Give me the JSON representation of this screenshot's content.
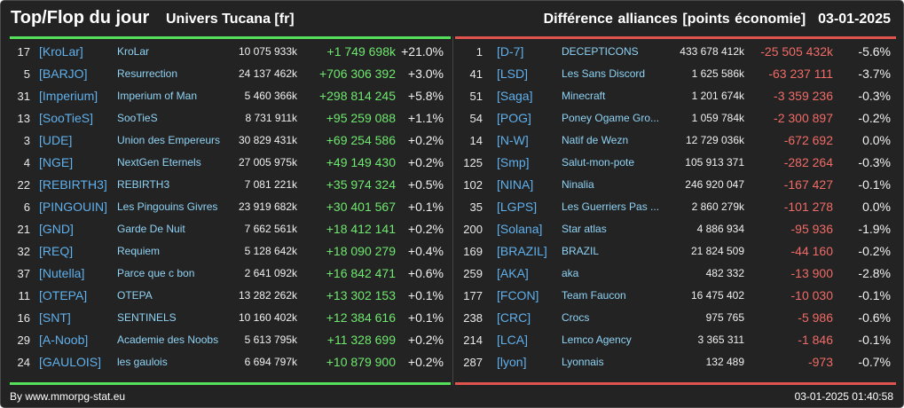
{
  "header": {
    "title": "Top/Flop du jour",
    "universe": "Univers Tucana [fr]",
    "metric": "Différence alliances [points économie]",
    "date": "03-01-2025"
  },
  "top": [
    {
      "rank": "17",
      "tag": "[KroLar]",
      "name": "KroLar",
      "points": "10 075 933k",
      "diff": "+1 749 698k",
      "pct": "+21.0%"
    },
    {
      "rank": "5",
      "tag": "[BARJO]",
      "name": "Resurrection",
      "points": "24 137 462k",
      "diff": "+706 306 392",
      "pct": "+3.0%"
    },
    {
      "rank": "31",
      "tag": "[Imperium]",
      "name": "Imperium of Man",
      "points": "5 460 366k",
      "diff": "+298 814 245",
      "pct": "+5.8%"
    },
    {
      "rank": "13",
      "tag": "[SooTieS]",
      "name": "SooTieS",
      "points": "8 731 911k",
      "diff": "+95 259 088",
      "pct": "+1.1%"
    },
    {
      "rank": "3",
      "tag": "[UDE]",
      "name": "Union des Empereurs",
      "points": "30 829 431k",
      "diff": "+69 254 586",
      "pct": "+0.2%"
    },
    {
      "rank": "4",
      "tag": "[NGE]",
      "name": "NextGen Eternels",
      "points": "27 005 975k",
      "diff": "+49 149 430",
      "pct": "+0.2%"
    },
    {
      "rank": "22",
      "tag": "[REBIRTH3]",
      "name": "REBIRTH3",
      "points": "7 081 221k",
      "diff": "+35 974 324",
      "pct": "+0.5%"
    },
    {
      "rank": "6",
      "tag": "[PINGOUIN]",
      "name": "Les Pingouins Givres",
      "points": "23 919 682k",
      "diff": "+30 401 567",
      "pct": "+0.1%"
    },
    {
      "rank": "21",
      "tag": "[GND]",
      "name": "Garde De Nuit",
      "points": "7 662 561k",
      "diff": "+18 412 141",
      "pct": "+0.2%"
    },
    {
      "rank": "32",
      "tag": "[REQ]",
      "name": "Requiem",
      "points": "5 128 642k",
      "diff": "+18 090 279",
      "pct": "+0.4%"
    },
    {
      "rank": "37",
      "tag": "[Nutella]",
      "name": "Parce que c bon",
      "points": "2 641 092k",
      "diff": "+16 842 471",
      "pct": "+0.6%"
    },
    {
      "rank": "11",
      "tag": "[OTEPA]",
      "name": "OTEPA",
      "points": "13 282 262k",
      "diff": "+13 302 153",
      "pct": "+0.1%"
    },
    {
      "rank": "16",
      "tag": "[SNT]",
      "name": "SENTINELS",
      "points": "10 160 402k",
      "diff": "+12 384 616",
      "pct": "+0.1%"
    },
    {
      "rank": "29",
      "tag": "[A-Noob]",
      "name": "Academie des Noobs",
      "points": "5 613 795k",
      "diff": "+11 328 699",
      "pct": "+0.2%"
    },
    {
      "rank": "24",
      "tag": "[GAULOIS]",
      "name": "les gaulois",
      "points": "6 694 797k",
      "diff": "+10 879 900",
      "pct": "+0.2%"
    }
  ],
  "flop": [
    {
      "rank": "1",
      "tag": "[D-7]",
      "name": "DECEPTICONS",
      "points": "433 678 412k",
      "diff": "-25 505 432k",
      "pct": "-5.6%"
    },
    {
      "rank": "41",
      "tag": "[LSD]",
      "name": "Les Sans Discord",
      "points": "1 625 586k",
      "diff": "-63 237 111",
      "pct": "-3.7%"
    },
    {
      "rank": "51",
      "tag": "[Saga]",
      "name": "Minecraft",
      "points": "1 201 674k",
      "diff": "-3 359 236",
      "pct": "-0.3%"
    },
    {
      "rank": "54",
      "tag": "[POG]",
      "name": "Poney Ogame Gro...",
      "points": "1 059 784k",
      "diff": "-2 300 897",
      "pct": "-0.2%"
    },
    {
      "rank": "14",
      "tag": "[N-W]",
      "name": "Natif de Wezn",
      "points": "12 729 036k",
      "diff": "-672 692",
      "pct": "0.0%"
    },
    {
      "rank": "125",
      "tag": "[Smp]",
      "name": "Salut-mon-pote",
      "points": "105 913 371",
      "diff": "-282 264",
      "pct": "-0.3%"
    },
    {
      "rank": "102",
      "tag": "[NINA]",
      "name": "Ninalia",
      "points": "246 920 047",
      "diff": "-167 427",
      "pct": "-0.1%"
    },
    {
      "rank": "35",
      "tag": "[LGPS]",
      "name": "Les Guerriers Pas ...",
      "points": "2 860 279k",
      "diff": "-101 278",
      "pct": "0.0%"
    },
    {
      "rank": "200",
      "tag": "[Solana]",
      "name": "Star atlas",
      "points": "4 886 934",
      "diff": "-95 936",
      "pct": "-1.9%"
    },
    {
      "rank": "169",
      "tag": "[BRAZIL]",
      "name": "BRAZIL",
      "points": "21 824 509",
      "diff": "-44 160",
      "pct": "-0.2%"
    },
    {
      "rank": "259",
      "tag": "[AKA]",
      "name": "aka",
      "points": "482 332",
      "diff": "-13 900",
      "pct": "-2.8%"
    },
    {
      "rank": "177",
      "tag": "[FCON]",
      "name": "Team Faucon",
      "points": "16 475 402",
      "diff": "-10 030",
      "pct": "-0.1%"
    },
    {
      "rank": "238",
      "tag": "[CRC]",
      "name": "Crocs",
      "points": "975 765",
      "diff": "-5 986",
      "pct": "-0.6%"
    },
    {
      "rank": "214",
      "tag": "[LCA]",
      "name": "Lemco Agency",
      "points": "3 365 311",
      "diff": "-1 846",
      "pct": "-0.1%"
    },
    {
      "rank": "287",
      "tag": "[lyon]",
      "name": "Lyonnais",
      "points": "132 489",
      "diff": "-973",
      "pct": "-0.7%"
    }
  ],
  "footer": {
    "source": "By www.mmorpg-stat.eu",
    "timestamp": "03-01-2025 01:40:58"
  },
  "colors": {
    "background": "#232323",
    "gain": "#6fe86f",
    "loss": "#f06b66",
    "tag": "#5fb0ec",
    "name": "#8fd3f5"
  }
}
